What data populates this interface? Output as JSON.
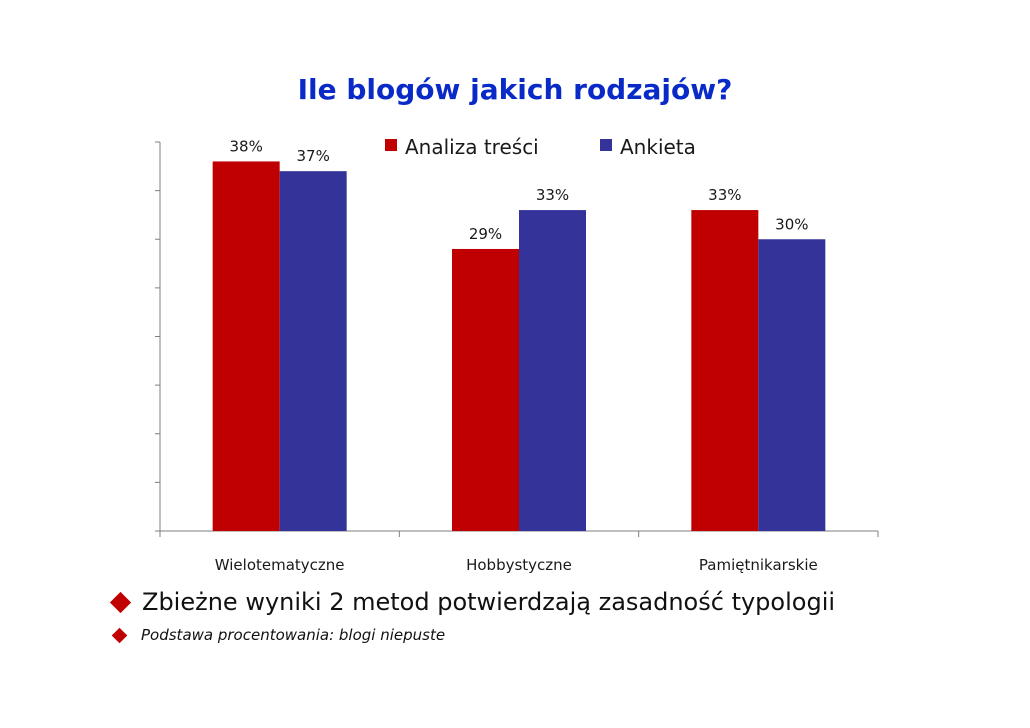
{
  "slide": {
    "title": "Ile blogów jakich rodzajów?",
    "bullets": [
      "Zbieżne wyniki 2 metod potwierdzają zasadność typologii",
      "Podstawa procentowania: blogi niepuste"
    ]
  },
  "chart_data": {
    "type": "bar",
    "title": "",
    "xlabel": "",
    "ylabel": "",
    "categories": [
      "Wielotematyczne",
      "Hobbystyczne",
      "Pamiętnikarskie"
    ],
    "series": [
      {
        "name": "Analiza treści",
        "values": [
          38,
          29,
          33
        ],
        "labels": [
          "38%",
          "29%",
          "33%"
        ],
        "color": "#c00000"
      },
      {
        "name": "Ankieta",
        "values": [
          37,
          33,
          30
        ],
        "labels": [
          "37%",
          "33%",
          "30%"
        ],
        "color": "#333399"
      }
    ],
    "ylim": [
      0,
      40
    ],
    "grid": false,
    "legend_position": "top-center",
    "value_unit": "%"
  }
}
